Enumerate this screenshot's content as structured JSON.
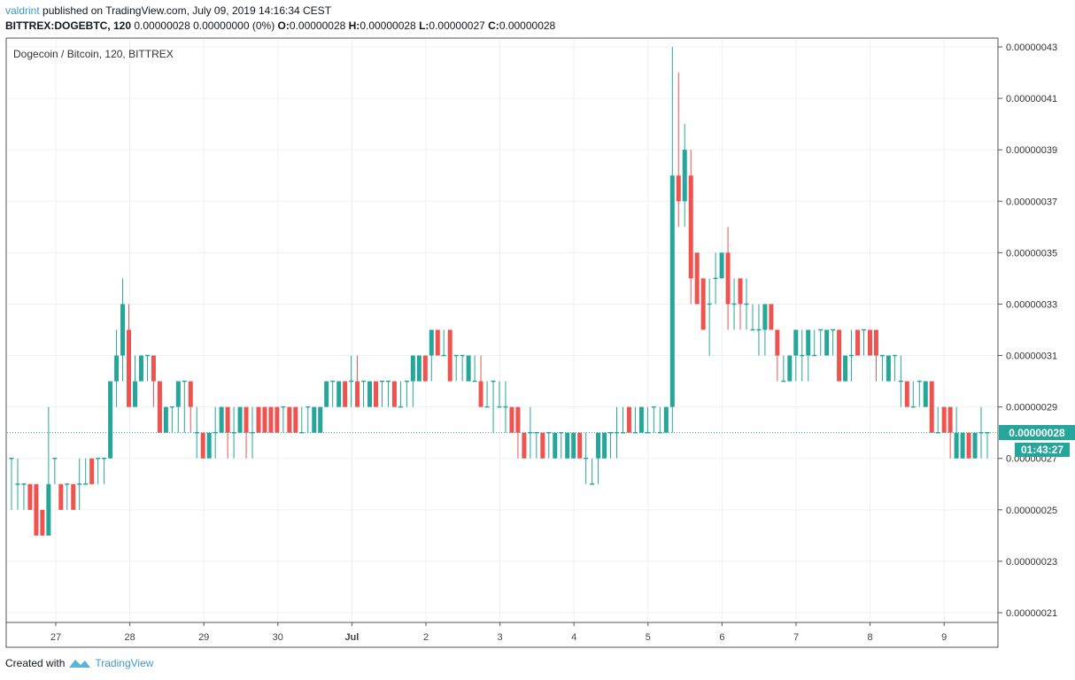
{
  "header": {
    "author": "valdrint",
    "published": "published on TradingView.com, July 09, 2019 14:16:34 CEST",
    "symbol": "BITTREX:DOGEBTC, 120",
    "last": "0.00000028",
    "change": "0.00000000 (0%)",
    "o_label": "O:",
    "o": "0.00000028",
    "h_label": "H:",
    "h": "0.00000028",
    "l_label": "L:",
    "l": "0.00000027",
    "c_label": "C:",
    "c": "0.00000028"
  },
  "footer": {
    "created_with": "Created with",
    "brand": "TradingView"
  },
  "colors": {
    "up": "#26a69a",
    "down": "#ef5350",
    "grid": "#edf1f5",
    "axis": "#555555",
    "price_line": "#26a69a"
  },
  "chart_data": {
    "type": "candlestick",
    "title": "Dogecoin / Bitcoin, 120, BITTREX",
    "interval": "120",
    "grid": true,
    "ylim": [
      2.07e-07,
      4.34e-07
    ],
    "y_ticks": [
      "0.00000043",
      "0.00000041",
      "0.00000039",
      "0.00000037",
      "0.00000035",
      "0.00000033",
      "0.00000031",
      "0.00000029",
      "0.00000027",
      "0.00000025",
      "0.00000023",
      "0.00000021"
    ],
    "x_ticks": [
      "27",
      "28",
      "29",
      "30",
      "Jul",
      "2",
      "3",
      "4",
      "5",
      "6",
      "7",
      "8",
      "9"
    ],
    "current_price": "0.00000028",
    "countdown": "01:43:27",
    "ohlc_fields": [
      "open",
      "high",
      "low",
      "close"
    ],
    "candles": [
      [
        2.7e-07,
        2.7e-07,
        2.5e-07,
        2.7e-07
      ],
      [
        2.6e-07,
        2.7e-07,
        2.5e-07,
        2.6e-07
      ],
      [
        2.6e-07,
        2.6e-07,
        2.5e-07,
        2.6e-07
      ],
      [
        2.6e-07,
        2.6e-07,
        2.5e-07,
        2.5e-07
      ],
      [
        2.6e-07,
        2.6e-07,
        2.4e-07,
        2.4e-07
      ],
      [
        2.5e-07,
        2.5e-07,
        2.4e-07,
        2.4e-07
      ],
      [
        2.4e-07,
        2.9e-07,
        2.4e-07,
        2.6e-07
      ],
      [
        2.7e-07,
        2.7e-07,
        2.6e-07,
        2.7e-07
      ],
      [
        2.6e-07,
        2.6e-07,
        2.5e-07,
        2.5e-07
      ],
      [
        2.6e-07,
        2.6e-07,
        2.5e-07,
        2.6e-07
      ],
      [
        2.6e-07,
        2.6e-07,
        2.5e-07,
        2.5e-07
      ],
      [
        2.6e-07,
        2.7e-07,
        2.5e-07,
        2.6e-07
      ],
      [
        2.6e-07,
        2.7e-07,
        2.6e-07,
        2.6e-07
      ],
      [
        2.7e-07,
        2.7e-07,
        2.6e-07,
        2.6e-07
      ],
      [
        2.7e-07,
        2.7e-07,
        2.6e-07,
        2.7e-07
      ],
      [
        2.7e-07,
        2.7e-07,
        2.6e-07,
        2.7e-07
      ],
      [
        2.7e-07,
        3e-07,
        2.7e-07,
        3e-07
      ],
      [
        3e-07,
        3.2e-07,
        2.9e-07,
        3.1e-07
      ],
      [
        3.1e-07,
        3.4e-07,
        3e-07,
        3.3e-07
      ],
      [
        3.2e-07,
        3.3e-07,
        2.9e-07,
        2.9e-07
      ],
      [
        2.9e-07,
        3.1e-07,
        2.9e-07,
        3e-07
      ],
      [
        3e-07,
        3.1e-07,
        3e-07,
        3.1e-07
      ],
      [
        3.1e-07,
        3.1e-07,
        3e-07,
        3.1e-07
      ],
      [
        3.1e-07,
        3.1e-07,
        2.9e-07,
        3e-07
      ],
      [
        3e-07,
        3e-07,
        2.8e-07,
        2.8e-07
      ],
      [
        2.8e-07,
        2.9e-07,
        2.8e-07,
        2.9e-07
      ],
      [
        2.9e-07,
        2.9e-07,
        2.8e-07,
        2.9e-07
      ],
      [
        2.9e-07,
        3e-07,
        2.8e-07,
        3e-07
      ],
      [
        3e-07,
        3e-07,
        2.8e-07,
        3e-07
      ],
      [
        3e-07,
        3e-07,
        2.8e-07,
        2.9e-07
      ],
      [
        2.8e-07,
        2.9e-07,
        2.7e-07,
        2.8e-07
      ],
      [
        2.8e-07,
        2.8e-07,
        2.7e-07,
        2.7e-07
      ],
      [
        2.7e-07,
        2.8e-07,
        2.7e-07,
        2.8e-07
      ],
      [
        2.8e-07,
        2.9e-07,
        2.7e-07,
        2.8e-07
      ],
      [
        2.8e-07,
        2.9e-07,
        2.8e-07,
        2.9e-07
      ],
      [
        2.9e-07,
        2.9e-07,
        2.7e-07,
        2.8e-07
      ],
      [
        2.8e-07,
        2.9e-07,
        2.7e-07,
        2.8e-07
      ],
      [
        2.8e-07,
        2.9e-07,
        2.8e-07,
        2.9e-07
      ],
      [
        2.9e-07,
        2.9e-07,
        2.7e-07,
        2.8e-07
      ],
      [
        2.8e-07,
        2.9e-07,
        2.7e-07,
        2.8e-07
      ],
      [
        2.9e-07,
        2.9e-07,
        2.8e-07,
        2.8e-07
      ],
      [
        2.9e-07,
        2.9e-07,
        2.8e-07,
        2.8e-07
      ],
      [
        2.9e-07,
        2.9e-07,
        2.8e-07,
        2.8e-07
      ],
      [
        2.9e-07,
        2.9e-07,
        2.8e-07,
        2.8e-07
      ],
      [
        2.9e-07,
        2.9e-07,
        2.8e-07,
        2.9e-07
      ],
      [
        2.9e-07,
        2.9e-07,
        2.8e-07,
        2.8e-07
      ],
      [
        2.9e-07,
        2.9e-07,
        2.8e-07,
        2.8e-07
      ],
      [
        2.8e-07,
        2.9e-07,
        2.8e-07,
        2.8e-07
      ],
      [
        2.9e-07,
        2.9e-07,
        2.8e-07,
        2.9e-07
      ],
      [
        2.8e-07,
        2.9e-07,
        2.8e-07,
        2.9e-07
      ],
      [
        2.8e-07,
        2.9e-07,
        2.8e-07,
        2.9e-07
      ],
      [
        2.9e-07,
        3e-07,
        2.9e-07,
        3e-07
      ],
      [
        3e-07,
        3e-07,
        2.9e-07,
        3e-07
      ],
      [
        2.9e-07,
        3e-07,
        2.9e-07,
        3e-07
      ],
      [
        3e-07,
        3e-07,
        2.9e-07,
        2.9e-07
      ],
      [
        3e-07,
        3.1e-07,
        2.9e-07,
        3e-07
      ],
      [
        3e-07,
        3.1e-07,
        2.9e-07,
        2.9e-07
      ],
      [
        3e-07,
        3e-07,
        2.9e-07,
        3e-07
      ],
      [
        2.9e-07,
        3e-07,
        2.9e-07,
        3e-07
      ],
      [
        3e-07,
        3e-07,
        2.9e-07,
        2.9e-07
      ],
      [
        3e-07,
        3e-07,
        2.9e-07,
        3e-07
      ],
      [
        3e-07,
        3e-07,
        2.9e-07,
        3e-07
      ],
      [
        3e-07,
        3e-07,
        2.9e-07,
        2.9e-07
      ],
      [
        2.9e-07,
        3e-07,
        2.9e-07,
        2.9e-07
      ],
      [
        3e-07,
        3e-07,
        2.9e-07,
        3e-07
      ],
      [
        3e-07,
        3.1e-07,
        2.9e-07,
        3.1e-07
      ],
      [
        3e-07,
        3.1e-07,
        3e-07,
        3.1e-07
      ],
      [
        3.1e-07,
        3.1e-07,
        3e-07,
        3e-07
      ],
      [
        3.1e-07,
        3.2e-07,
        3e-07,
        3.2e-07
      ],
      [
        3.2e-07,
        3.2e-07,
        3.1e-07,
        3.1e-07
      ],
      [
        3.1e-07,
        3.2e-07,
        3.1e-07,
        3.1e-07
      ],
      [
        3.2e-07,
        3.2e-07,
        3e-07,
        3e-07
      ],
      [
        3.1e-07,
        3.1e-07,
        3e-07,
        3.1e-07
      ],
      [
        3.1e-07,
        3.1e-07,
        3e-07,
        3.1e-07
      ],
      [
        3e-07,
        3.1e-07,
        3e-07,
        3.1e-07
      ],
      [
        3e-07,
        3.1e-07,
        3e-07,
        3e-07
      ],
      [
        3e-07,
        3.1e-07,
        2.9e-07,
        2.9e-07
      ],
      [
        2.9e-07,
        3e-07,
        2.9e-07,
        2.9e-07
      ],
      [
        3e-07,
        3e-07,
        2.8e-07,
        3e-07
      ],
      [
        2.9e-07,
        3e-07,
        2.9e-07,
        2.9e-07
      ],
      [
        2.9e-07,
        3e-07,
        2.8e-07,
        2.9e-07
      ],
      [
        2.9e-07,
        2.9e-07,
        2.8e-07,
        2.8e-07
      ],
      [
        2.9e-07,
        2.9e-07,
        2.7e-07,
        2.8e-07
      ],
      [
        2.8e-07,
        2.8e-07,
        2.7e-07,
        2.7e-07
      ],
      [
        2.8e-07,
        2.9e-07,
        2.7e-07,
        2.8e-07
      ],
      [
        2.8e-07,
        2.8e-07,
        2.7e-07,
        2.8e-07
      ],
      [
        2.8e-07,
        2.8e-07,
        2.7e-07,
        2.7e-07
      ],
      [
        2.8e-07,
        2.8e-07,
        2.7e-07,
        2.8e-07
      ],
      [
        2.7e-07,
        2.8e-07,
        2.7e-07,
        2.8e-07
      ],
      [
        2.8e-07,
        2.8e-07,
        2.7e-07,
        2.8e-07
      ],
      [
        2.7e-07,
        2.8e-07,
        2.7e-07,
        2.8e-07
      ],
      [
        2.7e-07,
        2.8e-07,
        2.7e-07,
        2.8e-07
      ],
      [
        2.8e-07,
        2.8e-07,
        2.7e-07,
        2.7e-07
      ],
      [
        2.7e-07,
        2.8e-07,
        2.6e-07,
        2.7e-07
      ],
      [
        2.6e-07,
        2.7e-07,
        2.6e-07,
        2.6e-07
      ],
      [
        2.7e-07,
        2.8e-07,
        2.6e-07,
        2.8e-07
      ],
      [
        2.7e-07,
        2.8e-07,
        2.7e-07,
        2.8e-07
      ],
      [
        2.8e-07,
        2.8e-07,
        2.7e-07,
        2.8e-07
      ],
      [
        2.8e-07,
        2.9e-07,
        2.7e-07,
        2.8e-07
      ],
      [
        2.8e-07,
        2.9e-07,
        2.8e-07,
        2.8e-07
      ],
      [
        2.9e-07,
        2.9e-07,
        2.8e-07,
        2.8e-07
      ],
      [
        2.8e-07,
        2.9e-07,
        2.8e-07,
        2.8e-07
      ],
      [
        2.8e-07,
        2.9e-07,
        2.8e-07,
        2.9e-07
      ],
      [
        2.8e-07,
        2.9e-07,
        2.8e-07,
        2.8e-07
      ],
      [
        2.9e-07,
        2.9e-07,
        2.8e-07,
        2.9e-07
      ],
      [
        2.8e-07,
        2.9e-07,
        2.8e-07,
        2.8e-07
      ],
      [
        2.8e-07,
        2.9e-07,
        2.8e-07,
        2.9e-07
      ],
      [
        2.9e-07,
        4.3e-07,
        2.8e-07,
        3.8e-07
      ],
      [
        3.8e-07,
        4.2e-07,
        3.6e-07,
        3.7e-07
      ],
      [
        3.7e-07,
        4e-07,
        3.6e-07,
        3.9e-07
      ],
      [
        3.8e-07,
        3.9e-07,
        3.3e-07,
        3.4e-07
      ],
      [
        3.5e-07,
        3.5e-07,
        3.3e-07,
        3.3e-07
      ],
      [
        3.4e-07,
        3.4e-07,
        3.2e-07,
        3.2e-07
      ],
      [
        3.3e-07,
        3.4e-07,
        3.1e-07,
        3.3e-07
      ],
      [
        3.4e-07,
        3.5e-07,
        3.3e-07,
        3.4e-07
      ],
      [
        3.4e-07,
        3.5e-07,
        3.4e-07,
        3.5e-07
      ],
      [
        3.5e-07,
        3.6e-07,
        3.2e-07,
        3.3e-07
      ],
      [
        3.3e-07,
        3.4e-07,
        3.2e-07,
        3.3e-07
      ],
      [
        3.4e-07,
        3.4e-07,
        3.2e-07,
        3.3e-07
      ],
      [
        3.3e-07,
        3.4e-07,
        3.2e-07,
        3.3e-07
      ],
      [
        3.2e-07,
        3.3e-07,
        3.2e-07,
        3.2e-07
      ],
      [
        3.2e-07,
        3.3e-07,
        3.1e-07,
        3.2e-07
      ],
      [
        3.2e-07,
        3.3e-07,
        3.1e-07,
        3.3e-07
      ],
      [
        3.3e-07,
        3.3e-07,
        3.2e-07,
        3.2e-07
      ],
      [
        3.2e-07,
        3.2e-07,
        3e-07,
        3.1e-07
      ],
      [
        3e-07,
        3.1e-07,
        3e-07,
        3e-07
      ],
      [
        3e-07,
        3.1e-07,
        3e-07,
        3.1e-07
      ],
      [
        3.1e-07,
        3.2e-07,
        3e-07,
        3.2e-07
      ],
      [
        3.1e-07,
        3.2e-07,
        3e-07,
        3.1e-07
      ],
      [
        3.1e-07,
        3.2e-07,
        3e-07,
        3.2e-07
      ],
      [
        3.1e-07,
        3.2e-07,
        3.1e-07,
        3.1e-07
      ],
      [
        3.2e-07,
        3.2e-07,
        3.1e-07,
        3.2e-07
      ],
      [
        3.1e-07,
        3.2e-07,
        3.1e-07,
        3.2e-07
      ],
      [
        3.2e-07,
        3.2e-07,
        3.1e-07,
        3.2e-07
      ],
      [
        3.2e-07,
        3.2e-07,
        3e-07,
        3e-07
      ],
      [
        3e-07,
        3.1e-07,
        3e-07,
        3.1e-07
      ],
      [
        3.1e-07,
        3.2e-07,
        3e-07,
        3.1e-07
      ],
      [
        3.2e-07,
        3.2e-07,
        3.1e-07,
        3.1e-07
      ],
      [
        3.2e-07,
        3.2e-07,
        3.1e-07,
        3.2e-07
      ],
      [
        3.2e-07,
        3.2e-07,
        3.1e-07,
        3.1e-07
      ],
      [
        3.2e-07,
        3.2e-07,
        3e-07,
        3.1e-07
      ],
      [
        3.1e-07,
        3.1e-07,
        3e-07,
        3.1e-07
      ],
      [
        3e-07,
        3.1e-07,
        3e-07,
        3.1e-07
      ],
      [
        3.1e-07,
        3.1e-07,
        3e-07,
        3.1e-07
      ],
      [
        3e-07,
        3.1e-07,
        2.9e-07,
        3e-07
      ],
      [
        3e-07,
        3e-07,
        2.9e-07,
        2.9e-07
      ],
      [
        2.9e-07,
        3e-07,
        2.9e-07,
        2.9e-07
      ],
      [
        3e-07,
        3e-07,
        2.9e-07,
        3e-07
      ],
      [
        2.9e-07,
        3e-07,
        2.9e-07,
        3e-07
      ],
      [
        3e-07,
        3e-07,
        2.8e-07,
        2.8e-07
      ],
      [
        2.8e-07,
        2.9e-07,
        2.8e-07,
        2.8e-07
      ],
      [
        2.9e-07,
        2.9e-07,
        2.8e-07,
        2.8e-07
      ],
      [
        2.9e-07,
        2.9e-07,
        2.7e-07,
        2.8e-07
      ],
      [
        2.7e-07,
        2.9e-07,
        2.7e-07,
        2.8e-07
      ],
      [
        2.7e-07,
        2.8e-07,
        2.7e-07,
        2.8e-07
      ],
      [
        2.8e-07,
        2.8e-07,
        2.7e-07,
        2.7e-07
      ],
      [
        2.7e-07,
        2.8e-07,
        2.7e-07,
        2.8e-07
      ],
      [
        2.8e-07,
        2.9e-07,
        2.7e-07,
        2.8e-07
      ],
      [
        2.8e-07,
        2.8e-07,
        2.7e-07,
        2.8e-07
      ]
    ]
  }
}
